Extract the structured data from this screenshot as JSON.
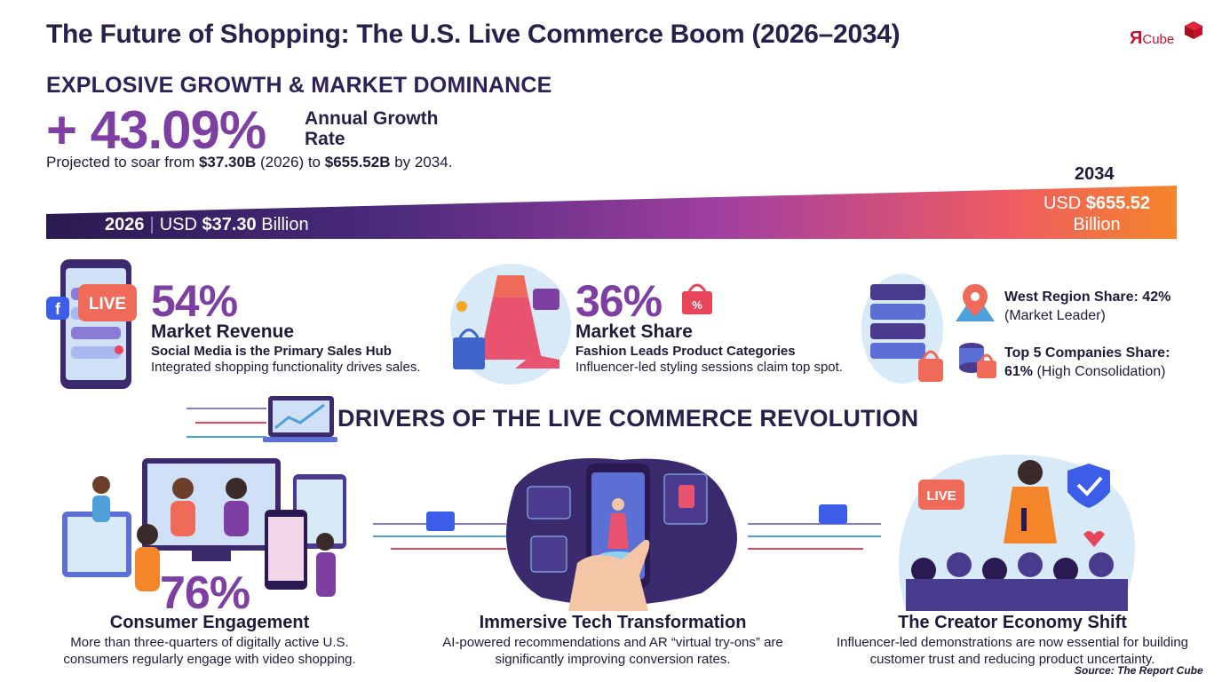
{
  "header": {
    "title": "The Future of Shopping: The U.S. Live Commerce Boom (2026–2034)",
    "logo_main": "Я",
    "logo_small": "Cube"
  },
  "growth": {
    "section_title": "EXPLOSIVE GROWTH & MARKET DOMINANCE",
    "rate": "+ 43.09%",
    "rate_label": "Annual Growth Rate",
    "projected_prefix": "Projected to soar from ",
    "start_value": "$37.30B",
    "start_year": " (2026) to ",
    "end_value": "$655.52B",
    "end_suffix": " by 2034."
  },
  "bar": {
    "start_year": "2026",
    "start_label_prefix": "USD ",
    "start_value": "$37.30",
    "start_label_suffix": " Billion",
    "end_year": "2034",
    "end_label_prefix": "USD ",
    "end_value": "$655.52",
    "end_label_suffix": "Billion",
    "colors": {
      "start": "#2b1a52",
      "mid": "#8d3fa8",
      "end": "#f47b2a"
    }
  },
  "stats": [
    {
      "value": "54%",
      "heading": "Market Revenue",
      "subheading": "Social Media is the Primary Sales Hub",
      "description": "Integrated shopping functionality drives sales.",
      "icon": "live-phone-icon",
      "icon_text": "LIVE"
    },
    {
      "value": "36%",
      "heading": "Market Share",
      "subheading": "Fashion Leads Product Categories",
      "description": "Influencer-led styling sessions claim top spot.",
      "icon": "fashion-items-icon",
      "icon_text": "%"
    }
  ],
  "regions": [
    {
      "label": "West Region Share: 42%",
      "note": "(Market Leader)",
      "icon": "map-pin-icon"
    },
    {
      "label": "Top 5 Companies Share:",
      "value": "61%",
      "note": " (High Consolidation)",
      "icon": "database-lock-icon"
    }
  ],
  "drivers": {
    "title": "DRIVERS OF THE LIVE COMMERCE REVOLUTION",
    "cards": [
      {
        "big_value": "76%",
        "title": "Consumer Engagement",
        "description": "More than three-quarters of digitally active U.S. consumers regularly engage with video shopping.",
        "icon": "video-shopping-crowd-icon"
      },
      {
        "title": "Immersive Tech Transformation",
        "description": "AI-powered recommendations and AR “virtual try-ons” are significantly improving conversion rates.",
        "icon": "ar-phone-icon"
      },
      {
        "title": "The Creator Economy Shift",
        "description": "Influencer-led demonstrations are now essential for building customer trust and reducing product uncertainty.",
        "icon": "creator-live-icon",
        "icon_text": "LIVE"
      }
    ]
  },
  "footer": {
    "source": "Source: The Report Cube"
  }
}
